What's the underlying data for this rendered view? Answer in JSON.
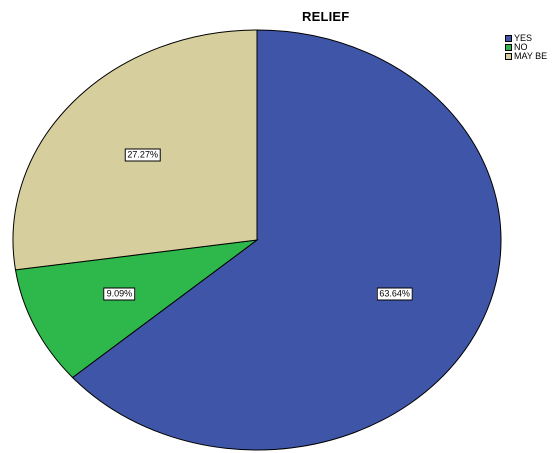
{
  "chart_data": {
    "type": "pie",
    "title": "RELIEF",
    "categories": [
      "YES",
      "NO",
      "MAY BE"
    ],
    "values": [
      63.64,
      9.09,
      27.27
    ],
    "labels": [
      "63.64%",
      "9.09%",
      "27.27%"
    ],
    "colors": [
      "#3f56a8",
      "#2eb84b",
      "#d6cf9d"
    ],
    "legend_position": "top-right",
    "start_angle_deg": 0,
    "direction": "clockwise"
  }
}
